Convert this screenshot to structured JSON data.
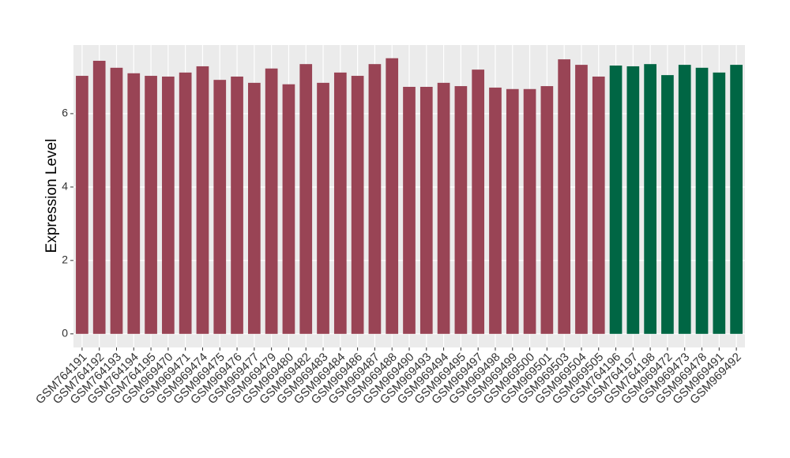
{
  "chart_data": {
    "type": "bar",
    "ylabel": "Expression Level",
    "categories": [
      "GSM764191",
      "GSM764192",
      "GSM764193",
      "GSM764194",
      "GSM764195",
      "GSM969470",
      "GSM969471",
      "GSM969474",
      "GSM969475",
      "GSM969476",
      "GSM969477",
      "GSM969479",
      "GSM969480",
      "GSM969482",
      "GSM969483",
      "GSM969484",
      "GSM969486",
      "GSM969487",
      "GSM969488",
      "GSM969490",
      "GSM969493",
      "GSM969494",
      "GSM969495",
      "GSM969497",
      "GSM969498",
      "GSM969499",
      "GSM969500",
      "GSM969501",
      "GSM969503",
      "GSM969504",
      "GSM969505",
      "GSM764196",
      "GSM764197",
      "GSM764198",
      "GSM969472",
      "GSM969473",
      "GSM969478",
      "GSM969491",
      "GSM969492"
    ],
    "values": [
      7.03,
      7.44,
      7.25,
      7.1,
      7.03,
      7.01,
      7.12,
      7.29,
      6.92,
      7.01,
      6.84,
      7.23,
      6.8,
      7.35,
      6.84,
      7.12,
      7.03,
      7.35,
      7.51,
      6.73,
      6.73,
      6.84,
      6.75,
      7.2,
      6.71,
      6.67,
      6.67,
      6.75,
      7.48,
      7.33,
      7.01,
      7.31,
      7.29,
      7.35,
      7.05,
      7.33,
      7.25,
      7.12,
      7.33
    ],
    "colors": [
      "#994455",
      "#994455",
      "#994455",
      "#994455",
      "#994455",
      "#994455",
      "#994455",
      "#994455",
      "#994455",
      "#994455",
      "#994455",
      "#994455",
      "#994455",
      "#994455",
      "#994455",
      "#994455",
      "#994455",
      "#994455",
      "#994455",
      "#994455",
      "#994455",
      "#994455",
      "#994455",
      "#994455",
      "#994455",
      "#994455",
      "#994455",
      "#994455",
      "#994455",
      "#994455",
      "#994455",
      "#006644",
      "#006644",
      "#006644",
      "#006644",
      "#006644",
      "#006644",
      "#006644",
      "#006644"
    ],
    "ylim": [
      -0.37,
      7.87
    ],
    "yticks": [
      0,
      2,
      4,
      6
    ],
    "grid": true
  }
}
